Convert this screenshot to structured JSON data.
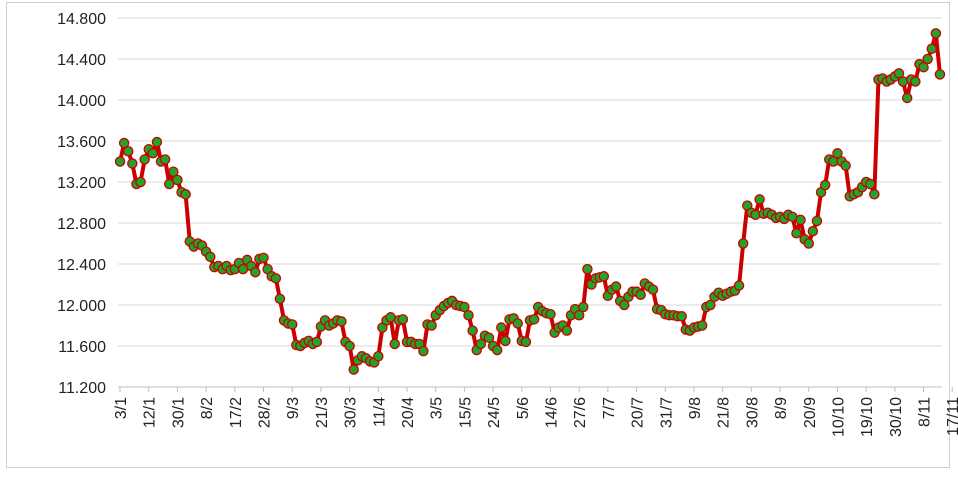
{
  "chart_data": {
    "type": "line",
    "title": "",
    "xlabel": "",
    "ylabel": "",
    "ylim": [
      11200,
      14800
    ],
    "y_ticks": [
      {
        "value": 11200,
        "label": "11.200"
      },
      {
        "value": 11600,
        "label": "11.600"
      },
      {
        "value": 12000,
        "label": "12.000"
      },
      {
        "value": 12400,
        "label": "12.400"
      },
      {
        "value": 12800,
        "label": "12.800"
      },
      {
        "value": 13200,
        "label": "13.200"
      },
      {
        "value": 13600,
        "label": "13.600"
      },
      {
        "value": 14000,
        "label": "14.000"
      },
      {
        "value": 14400,
        "label": "14.400"
      },
      {
        "value": 14800,
        "label": "14.800"
      }
    ],
    "x_ticks": [
      {
        "index": 0,
        "label": "3/1"
      },
      {
        "index": 7,
        "label": "12/1"
      },
      {
        "index": 14,
        "label": "30/1"
      },
      {
        "index": 21,
        "label": "8/2"
      },
      {
        "index": 28,
        "label": "17/2"
      },
      {
        "index": 35,
        "label": "28/2"
      },
      {
        "index": 42,
        "label": "9/3"
      },
      {
        "index": 49,
        "label": "21/3"
      },
      {
        "index": 56,
        "label": "30/3"
      },
      {
        "index": 63,
        "label": "11/4"
      },
      {
        "index": 70,
        "label": "20/4"
      },
      {
        "index": 77,
        "label": "3/5"
      },
      {
        "index": 84,
        "label": "15/5"
      },
      {
        "index": 91,
        "label": "24/5"
      },
      {
        "index": 98,
        "label": "5/6"
      },
      {
        "index": 105,
        "label": "14/6"
      },
      {
        "index": 112,
        "label": "27/6"
      },
      {
        "index": 119,
        "label": "7/7"
      },
      {
        "index": 126,
        "label": "20/7"
      },
      {
        "index": 133,
        "label": "31/7"
      },
      {
        "index": 140,
        "label": "9/8"
      },
      {
        "index": 147,
        "label": "21/8"
      },
      {
        "index": 154,
        "label": "30/8"
      },
      {
        "index": 161,
        "label": "8/9"
      },
      {
        "index": 168,
        "label": "20/9"
      },
      {
        "index": 175,
        "label": "10/10"
      },
      {
        "index": 182,
        "label": "19/10"
      },
      {
        "index": 189,
        "label": "30/10"
      },
      {
        "index": 196,
        "label": "8/11"
      },
      {
        "index": 203,
        "label": "17/11"
      }
    ],
    "series": [
      {
        "values": [
          13400,
          13580,
          13500,
          13380,
          13180,
          13200,
          13420,
          13520,
          13480,
          13590,
          13400,
          13420,
          13180,
          13300,
          13220,
          13100,
          13080,
          12620,
          12570,
          12600,
          12580,
          12520,
          12470,
          12370,
          12380,
          12350,
          12380,
          12340,
          12350,
          12410,
          12350,
          12440,
          12380,
          12320,
          12450,
          12460,
          12350,
          12280,
          12260,
          12060,
          11850,
          11820,
          11810,
          11610,
          11600,
          11630,
          11650,
          11620,
          11640,
          11790,
          11850,
          11800,
          11820,
          11850,
          11840,
          11640,
          11600,
          11370,
          11460,
          11500,
          11480,
          11450,
          11440,
          11500,
          11780,
          11850,
          11880,
          11620,
          11850,
          11860,
          11640,
          11640,
          11620,
          11620,
          11550,
          11810,
          11800,
          11900,
          11950,
          11990,
          12020,
          12040,
          12000,
          11990,
          11980,
          11900,
          11750,
          11560,
          11620,
          11700,
          11680,
          11600,
          11560,
          11780,
          11650,
          11860,
          11870,
          11820,
          11650,
          11640,
          11850,
          11860,
          11980,
          11940,
          11920,
          11910,
          11730,
          11780,
          11800,
          11750,
          11900,
          11960,
          11900,
          11980,
          12350,
          12200,
          12260,
          12270,
          12280,
          12090,
          12150,
          12180,
          12040,
          12000,
          12080,
          12130,
          12130,
          12100,
          12210,
          12180,
          12150,
          11960,
          11950,
          11910,
          11900,
          11900,
          11890,
          11890,
          11760,
          11750,
          11780,
          11790,
          11800,
          11980,
          12000,
          12080,
          12120,
          12090,
          12110,
          12130,
          12140,
          12190,
          12600,
          12970,
          12900,
          12880,
          13030,
          12890,
          12900,
          12880,
          12850,
          12860,
          12840,
          12880,
          12860,
          12700,
          12830,
          12640,
          12600,
          12720,
          12820,
          13100,
          13170,
          13420,
          13400,
          13480,
          13400,
          13360,
          13060,
          13080,
          13100,
          13150,
          13200,
          13180,
          13080,
          14200,
          14210,
          14180,
          14200,
          14230,
          14260,
          14180,
          14020,
          14200,
          14180,
          14350,
          14320,
          14400,
          14500,
          14650,
          14250
        ]
      }
    ],
    "colors": {
      "line": "#cc0000",
      "marker_fill": "#22a32a",
      "marker_stroke": "#cc0000",
      "grid": "#d9d9d9",
      "frame": "#d0d0d0"
    }
  }
}
